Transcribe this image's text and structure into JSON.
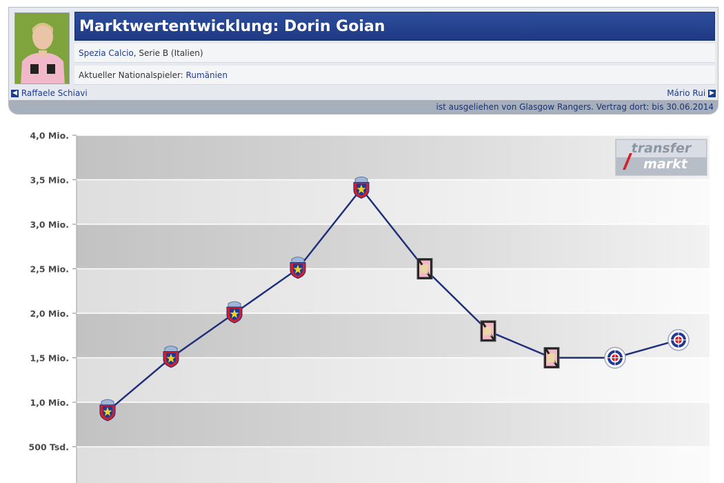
{
  "header": {
    "title": "Marktwertentwicklung: Dorin Goian",
    "club": "Spezia Calcio",
    "league_line": ", Serie B (Italien)",
    "nat_label": "Aktueller Nationalspieler: ",
    "nat_country": "Rumänien",
    "prev_player": "Raffaele Schiavi",
    "next_player": "Mário Rui",
    "loan_info": "ist ausgeliehen von Glasgow Rangers. Vertrag dort: bis 30.06.2014"
  },
  "watermark": {
    "line1": "transfer",
    "line2": "markt"
  },
  "colors": {
    "title_bar": "#2d4d9c",
    "line": "#1f2f7a",
    "link": "#1d3b8c",
    "loan_bar": "#a7afba"
  },
  "chart_data": {
    "type": "line",
    "title": "",
    "xlabel": "",
    "ylabel": "",
    "ylim": [
      0,
      4000000
    ],
    "y_ticks": [
      {
        "value": 4000000,
        "label": "4,0 Mio."
      },
      {
        "value": 3500000,
        "label": "3,5 Mio."
      },
      {
        "value": 3000000,
        "label": "3,0 Mio."
      },
      {
        "value": 2500000,
        "label": "2,5 Mio."
      },
      {
        "value": 2000000,
        "label": "2,0 Mio."
      },
      {
        "value": 1500000,
        "label": "1,5 Mio."
      },
      {
        "value": 1000000,
        "label": "1,0 Mio."
      },
      {
        "value": 500000,
        "label": "500 Tsd."
      }
    ],
    "grid": true,
    "series": [
      {
        "values": [
          900000,
          1500000,
          2000000,
          2500000,
          3400000,
          2500000,
          1800000,
          1500000,
          1500000,
          1700000
        ],
        "markers": [
          "steaua-logo-icon",
          "steaua-logo-icon",
          "steaua-logo-icon",
          "steaua-logo-icon",
          "steaua-logo-icon",
          "palermo-logo-icon",
          "palermo-logo-icon",
          "palermo-logo-icon",
          "rangers-logo-icon",
          "rangers-logo-icon"
        ]
      }
    ]
  }
}
